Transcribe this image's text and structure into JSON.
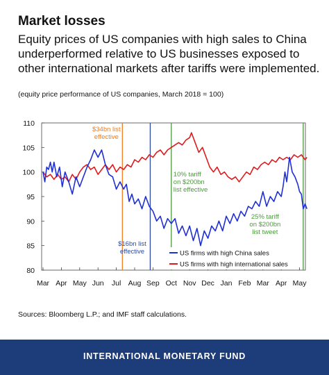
{
  "header": {
    "title": "Market losses",
    "subtitle": "Equity prices of US companies with high sales to China underperformed relative to US businesses exposed to other international markets after tariffs were implemented.",
    "note": "(equity price performance of US companies, March 2018 = 100)"
  },
  "source": "Sources: Bloomberg L.P.; and IMF staff calculations.",
  "footer": {
    "org": "INTERNATIONAL MONETARY FUND"
  },
  "colors": {
    "china_series": "#1f2fd6",
    "intl_series": "#e0191b",
    "event_orange": "#f07c1c",
    "event_navy": "#2e4a9e",
    "event_green": "#4a9a3c",
    "footer_bg": "#1d3c7a"
  },
  "chart_data": {
    "type": "line",
    "categories": [
      "Mar",
      "Apr",
      "May",
      "Jun",
      "Jul",
      "Aug",
      "Sep",
      "Oct",
      "Nov",
      "Dec",
      "Jan",
      "Feb",
      "Mar",
      "Apr",
      "May"
    ],
    "ylim": [
      80,
      110
    ],
    "yticks": [
      80,
      85,
      90,
      95,
      100,
      105,
      110
    ],
    "legend_position": "bottom-right",
    "series": [
      {
        "name": "US firms with high China sales",
        "color": "#1f2fd6",
        "x": [
          0,
          0.1,
          0.2,
          0.3,
          0.4,
          0.5,
          0.6,
          0.75,
          0.9,
          1.05,
          1.2,
          1.4,
          1.6,
          1.8,
          2.0,
          2.2,
          2.4,
          2.6,
          2.8,
          3.0,
          3.2,
          3.4,
          3.6,
          3.8,
          4.0,
          4.2,
          4.4,
          4.55,
          4.7,
          4.85,
          5.0,
          5.2,
          5.4,
          5.6,
          5.8,
          6.0,
          6.2,
          6.4,
          6.6,
          6.8,
          7.0,
          7.2,
          7.4,
          7.6,
          7.8,
          8.0,
          8.2,
          8.4,
          8.6,
          8.8,
          9.0,
          9.2,
          9.4,
          9.6,
          9.8,
          10.0,
          10.2,
          10.4,
          10.6,
          10.8,
          11.0,
          11.2,
          11.4,
          11.6,
          11.8,
          12.0,
          12.2,
          12.4,
          12.6,
          12.8,
          13.0,
          13.1,
          13.2,
          13.3,
          13.45,
          13.6,
          13.75,
          13.9,
          14.0,
          14.1,
          14.2,
          14.3,
          14.4
        ],
        "values": [
          100,
          98,
          101,
          100.5,
          102,
          100,
          102,
          99,
          101,
          97,
          100,
          98,
          95.5,
          99,
          97,
          99,
          101,
          102.5,
          104.5,
          103,
          104.5,
          101.5,
          99.5,
          99,
          96.5,
          98,
          96.5,
          97.5,
          94,
          95.5,
          93.5,
          94.5,
          92.5,
          95,
          93,
          92,
          90,
          91,
          88.5,
          90.5,
          89.5,
          90.5,
          87.5,
          89,
          87,
          89,
          86,
          88.5,
          85,
          88,
          86.5,
          89,
          88,
          90,
          88,
          91,
          89.5,
          91.5,
          90,
          92,
          91,
          93,
          92.5,
          94,
          93,
          96,
          93,
          95,
          94,
          96,
          95,
          97,
          100,
          98,
          103,
          100,
          99,
          97.5,
          96,
          95.5,
          92.5,
          93.5,
          92.5
        ]
      },
      {
        "name": "US firms with high international sales",
        "color": "#e0191b",
        "x": [
          0,
          0.2,
          0.4,
          0.6,
          0.8,
          1.0,
          1.2,
          1.4,
          1.6,
          1.8,
          2.0,
          2.2,
          2.4,
          2.6,
          2.8,
          3.0,
          3.2,
          3.4,
          3.6,
          3.8,
          4.0,
          4.2,
          4.4,
          4.6,
          4.8,
          5.0,
          5.2,
          5.4,
          5.6,
          5.8,
          6.0,
          6.2,
          6.4,
          6.6,
          6.8,
          7.0,
          7.2,
          7.4,
          7.6,
          7.8,
          8.0,
          8.1,
          8.2,
          8.3,
          8.5,
          8.7,
          8.9,
          9.1,
          9.3,
          9.5,
          9.7,
          9.9,
          10.1,
          10.3,
          10.5,
          10.7,
          10.9,
          11.1,
          11.3,
          11.5,
          11.7,
          11.9,
          12.1,
          12.3,
          12.5,
          12.7,
          12.9,
          13.1,
          13.3,
          13.5,
          13.7,
          13.9,
          14.1,
          14.3,
          14.4
        ],
        "values": [
          100,
          99,
          99.5,
          98.5,
          99.5,
          98.5,
          99,
          98,
          99.5,
          98.5,
          100,
          101,
          101.5,
          100.5,
          101,
          99.5,
          100.5,
          101.5,
          100.5,
          101.5,
          100,
          101,
          100.5,
          101.5,
          101,
          102.5,
          102,
          103,
          102.5,
          103.5,
          103,
          104,
          104.5,
          103.5,
          104.5,
          105,
          105.5,
          106,
          105.5,
          106.5,
          107,
          108,
          107,
          106,
          104,
          105,
          103,
          101,
          100,
          101,
          99.5,
          100,
          99,
          98.5,
          99,
          98,
          99,
          100,
          99.5,
          101,
          100.5,
          101.5,
          102,
          101.5,
          102.5,
          102,
          103,
          102.5,
          103,
          102.5,
          103.5,
          103,
          103.5,
          102.5,
          103
        ]
      }
    ],
    "events": [
      {
        "x": 4.33,
        "color": "#f07c1c",
        "label": [
          "$34bn list",
          "effective"
        ]
      },
      {
        "x": 5.85,
        "color": "#2e4a9e",
        "label": [
          "$16bn list",
          "effective"
        ]
      },
      {
        "x": 7.0,
        "color": "#4a9a3c",
        "label": [
          "10% tariff",
          "on $200bn",
          "list effective"
        ]
      },
      {
        "x": 14.2,
        "color": "#4a9a3c",
        "label": [
          "25% tariff",
          "on $200bn",
          "list tweet"
        ]
      }
    ]
  }
}
